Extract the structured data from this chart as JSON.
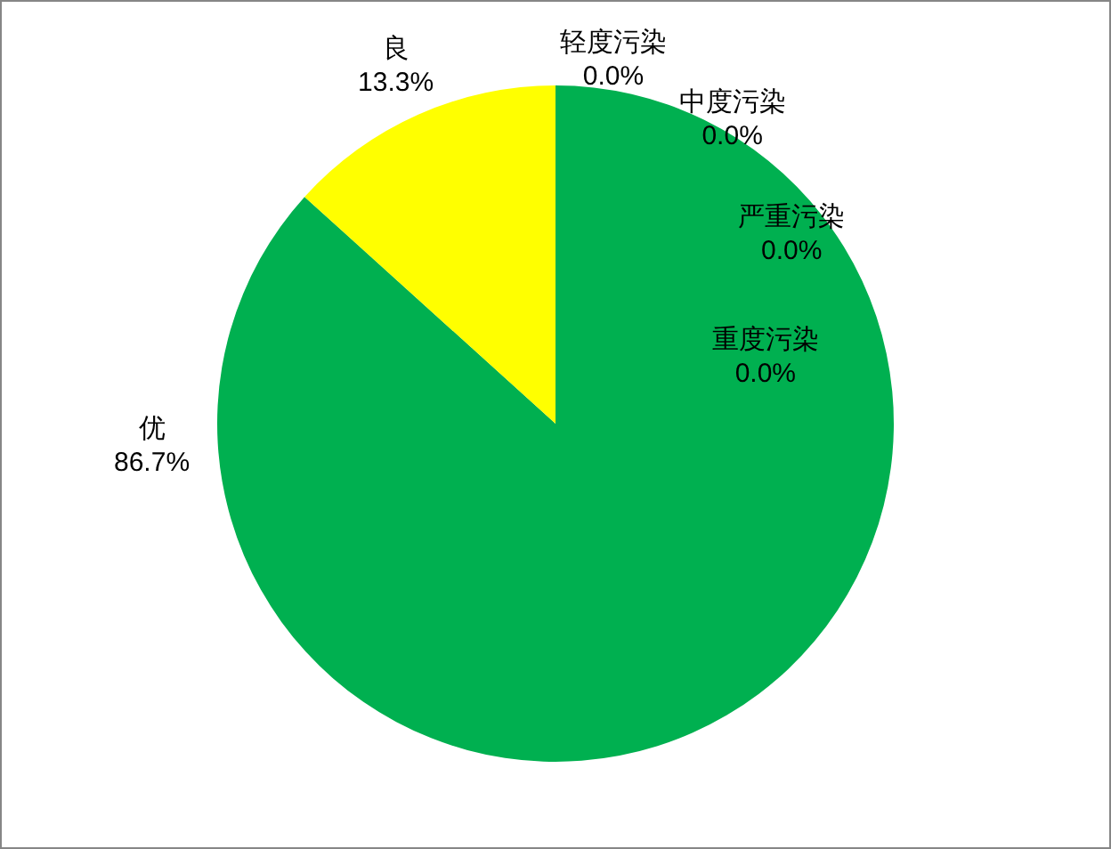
{
  "chart_data": {
    "type": "pie",
    "categories": [
      "优",
      "良",
      "轻度污染",
      "中度污染",
      "严重污染",
      "重度污染"
    ],
    "values": [
      86.7,
      13.3,
      0.0,
      0.0,
      0.0,
      0.0
    ],
    "colors": [
      "#00b050",
      "#ffff00",
      null,
      null,
      null,
      null
    ],
    "value_labels": [
      "86.7%",
      "13.3%",
      "0.0%",
      "0.0%",
      "0.0%",
      "0.0%"
    ]
  }
}
